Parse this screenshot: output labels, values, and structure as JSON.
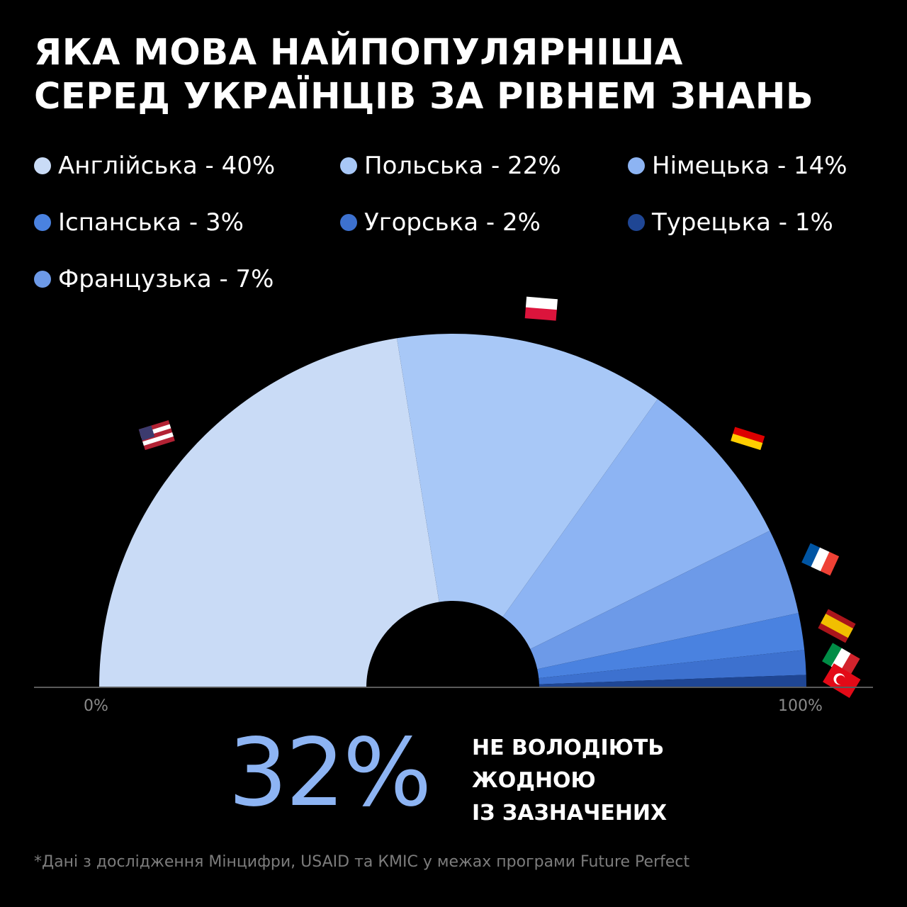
{
  "title_lines": [
    "ЯКА МОВА НАЙПОПУЛЯРНІША",
    "СЕРЕД УКРАЇНЦІВ ЗА РІВНЕМ ЗНАНЬ"
  ],
  "legend": [
    {
      "label": "Англійська - 40%",
      "color": "#c9dbf6"
    },
    {
      "label": "Польська - 22%",
      "color": "#a8c8f7"
    },
    {
      "label": "Німецька - 14%",
      "color": "#8db4f3"
    },
    {
      "label": "Іспанська - 3%",
      "color": "#4a82e0"
    },
    {
      "label": "Угорська - 2%",
      "color": "#3d71cf"
    },
    {
      "label": "Турецька - 1%",
      "color": "#1f4694"
    },
    {
      "label": "Французька - 7%",
      "color": "#6d9ae8"
    }
  ],
  "chart_data": {
    "type": "pie",
    "style": "half-donut",
    "xlabel_left": "0%",
    "xlabel_right": "100%",
    "slices": [
      {
        "label": "Англійська",
        "value": 40,
        "color": "#c9dbf6",
        "icon": "us-flag-icon"
      },
      {
        "label": "Польська",
        "value": 22,
        "color": "#a8c8f7",
        "icon": "poland-flag-icon"
      },
      {
        "label": "Німецька",
        "value": 14,
        "color": "#8db4f3",
        "icon": "germany-flag-icon"
      },
      {
        "label": "Французька",
        "value": 7,
        "color": "#6d9ae8",
        "icon": "france-flag-icon"
      },
      {
        "label": "Іспанська",
        "value": 3,
        "color": "#4a82e0",
        "icon": "spain-flag-icon"
      },
      {
        "label": "Угорська",
        "value": 2,
        "color": "#3d71cf",
        "icon": "hungary-flag-icon"
      },
      {
        "label": "Турецька",
        "value": 1,
        "color": "#1f4694",
        "icon": "turkey-flag-icon"
      }
    ]
  },
  "stat": {
    "value": "32%",
    "caption_lines": [
      "НЕ ВОЛОДІЮТЬ",
      "ЖОДНОЮ",
      "ІЗ ЗАЗНАЧЕНИХ"
    ]
  },
  "footnote": "*Дані з дослідження Мінцифри, USAID та КМІС у межах програми Future Perfect"
}
